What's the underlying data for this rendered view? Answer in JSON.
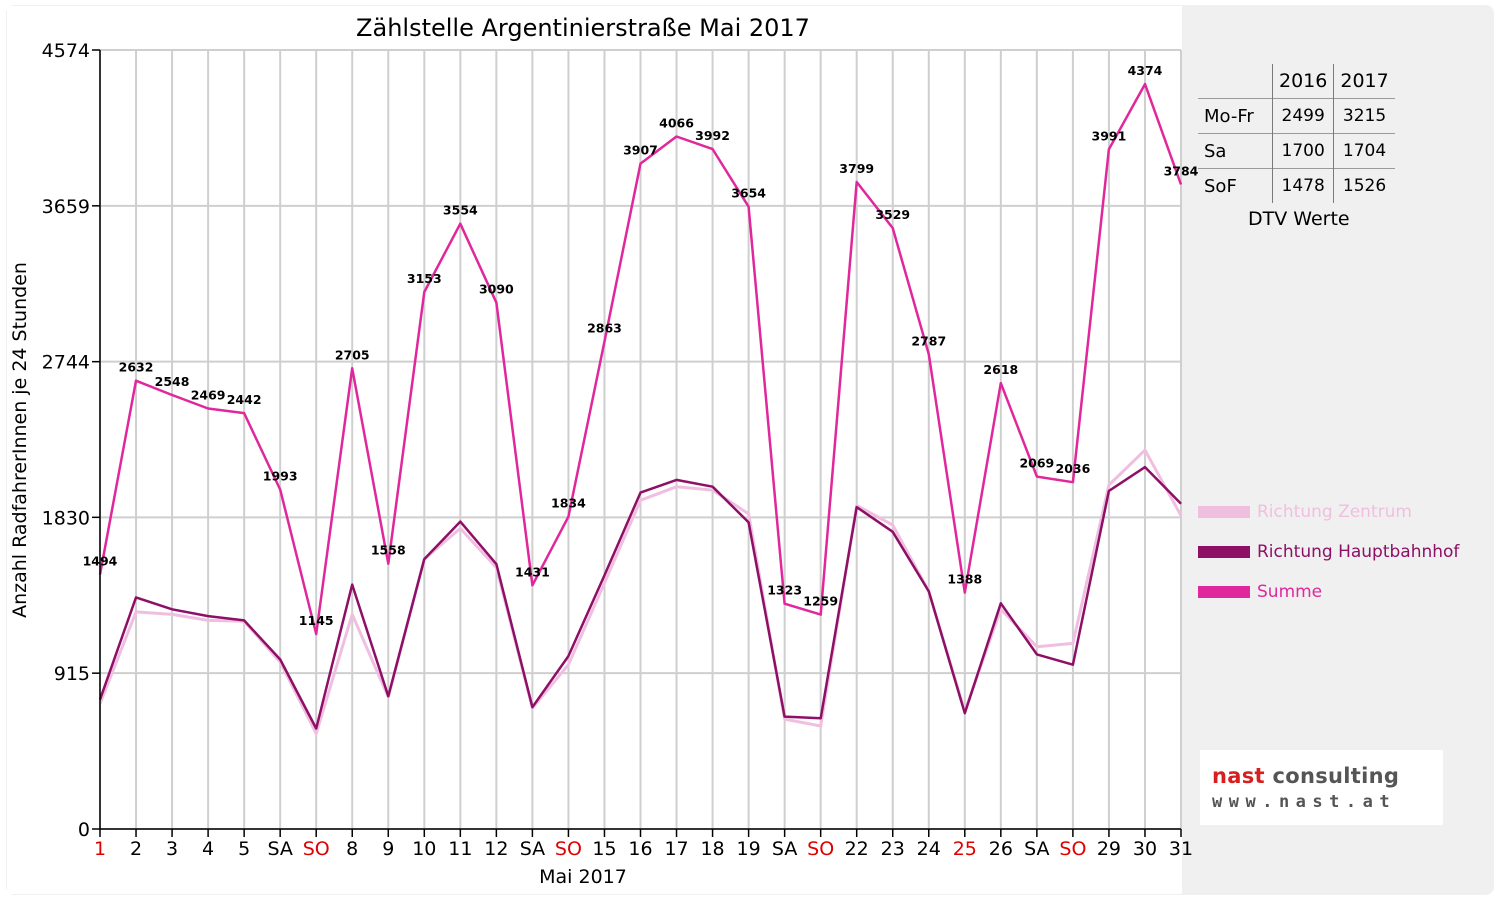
{
  "chart_data": {
    "type": "line",
    "title": "Zählstelle Argentinierstraße Mai 2017",
    "xlabel": "Mai 2017",
    "ylabel": "Anzahl RadfahrerInnen je 24 Stunden",
    "ylim": [
      0,
      4574
    ],
    "yticks": [
      0,
      915,
      1830,
      2744,
      3659,
      4574
    ],
    "grid": true,
    "legend_position": "right",
    "categories": [
      "1",
      "2",
      "3",
      "4",
      "5",
      "SA",
      "SO",
      "8",
      "9",
      "10",
      "11",
      "12",
      "SA",
      "SO",
      "15",
      "16",
      "17",
      "18",
      "19",
      "SA",
      "SO",
      "22",
      "23",
      "24",
      "25",
      "26",
      "SA",
      "SO",
      "29",
      "30",
      "31"
    ],
    "red_categories": [
      0,
      6,
      13,
      20,
      24,
      27
    ],
    "series": [
      {
        "name": "Richtung Zentrum",
        "color": "#f0bfe0",
        "values": [
          735,
          1275,
          1260,
          1225,
          1220,
          980,
          560,
          1260,
          775,
          1585,
          1765,
          1535,
          710,
          965,
          1445,
          1930,
          2010,
          1990,
          1850,
          645,
          605,
          1900,
          1785,
          1395,
          690,
          1290,
          1070,
          1090,
          2020,
          2225,
          1840
        ]
      },
      {
        "name": "Richtung Hauptbahnhof",
        "color": "#8e0f66",
        "values": [
          760,
          1360,
          1290,
          1250,
          1225,
          995,
          590,
          1435,
          780,
          1585,
          1805,
          1555,
          715,
          1015,
          1490,
          1975,
          2050,
          2010,
          1800,
          660,
          650,
          1890,
          1745,
          1395,
          680,
          1325,
          1025,
          965,
          1985,
          2125,
          1910
        ]
      },
      {
        "name": "Summe",
        "color": "#e0279c",
        "values": [
          1494,
          2632,
          2548,
          2469,
          2442,
          1993,
          1145,
          2705,
          1558,
          3153,
          3554,
          3090,
          1431,
          1834,
          2863,
          3907,
          4066,
          3992,
          3654,
          1323,
          1259,
          3799,
          3529,
          2787,
          1388,
          2618,
          2069,
          2036,
          3991,
          4374,
          3784
        ]
      }
    ],
    "data_labels": {
      "series": "Summe",
      "values": [
        "1494",
        "2632",
        "2548",
        "2469",
        "2442",
        "1993",
        "1145",
        "2705",
        "1558",
        "3153",
        "3554",
        "3090",
        "1431",
        "1834",
        "2863",
        "3907",
        "4066",
        "3992",
        "3654",
        "1323",
        "1259",
        "3799",
        "3529",
        "2787",
        "1388",
        "2618",
        "2069",
        "2036",
        "3991",
        "4374",
        "3784"
      ]
    }
  },
  "dtv_table": {
    "headers": [
      "2016",
      "2017"
    ],
    "rows": [
      {
        "label": "Mo-Fr",
        "y2016": "2499",
        "y2017": "3215"
      },
      {
        "label": "Sa",
        "y2016": "1700",
        "y2017": "1704"
      },
      {
        "label": "SoF",
        "y2016": "1478",
        "y2017": "1526"
      }
    ],
    "caption": "DTV Werte"
  },
  "logo": {
    "brand": "nast",
    "rest": "consulting",
    "url": "www.nast.at"
  }
}
